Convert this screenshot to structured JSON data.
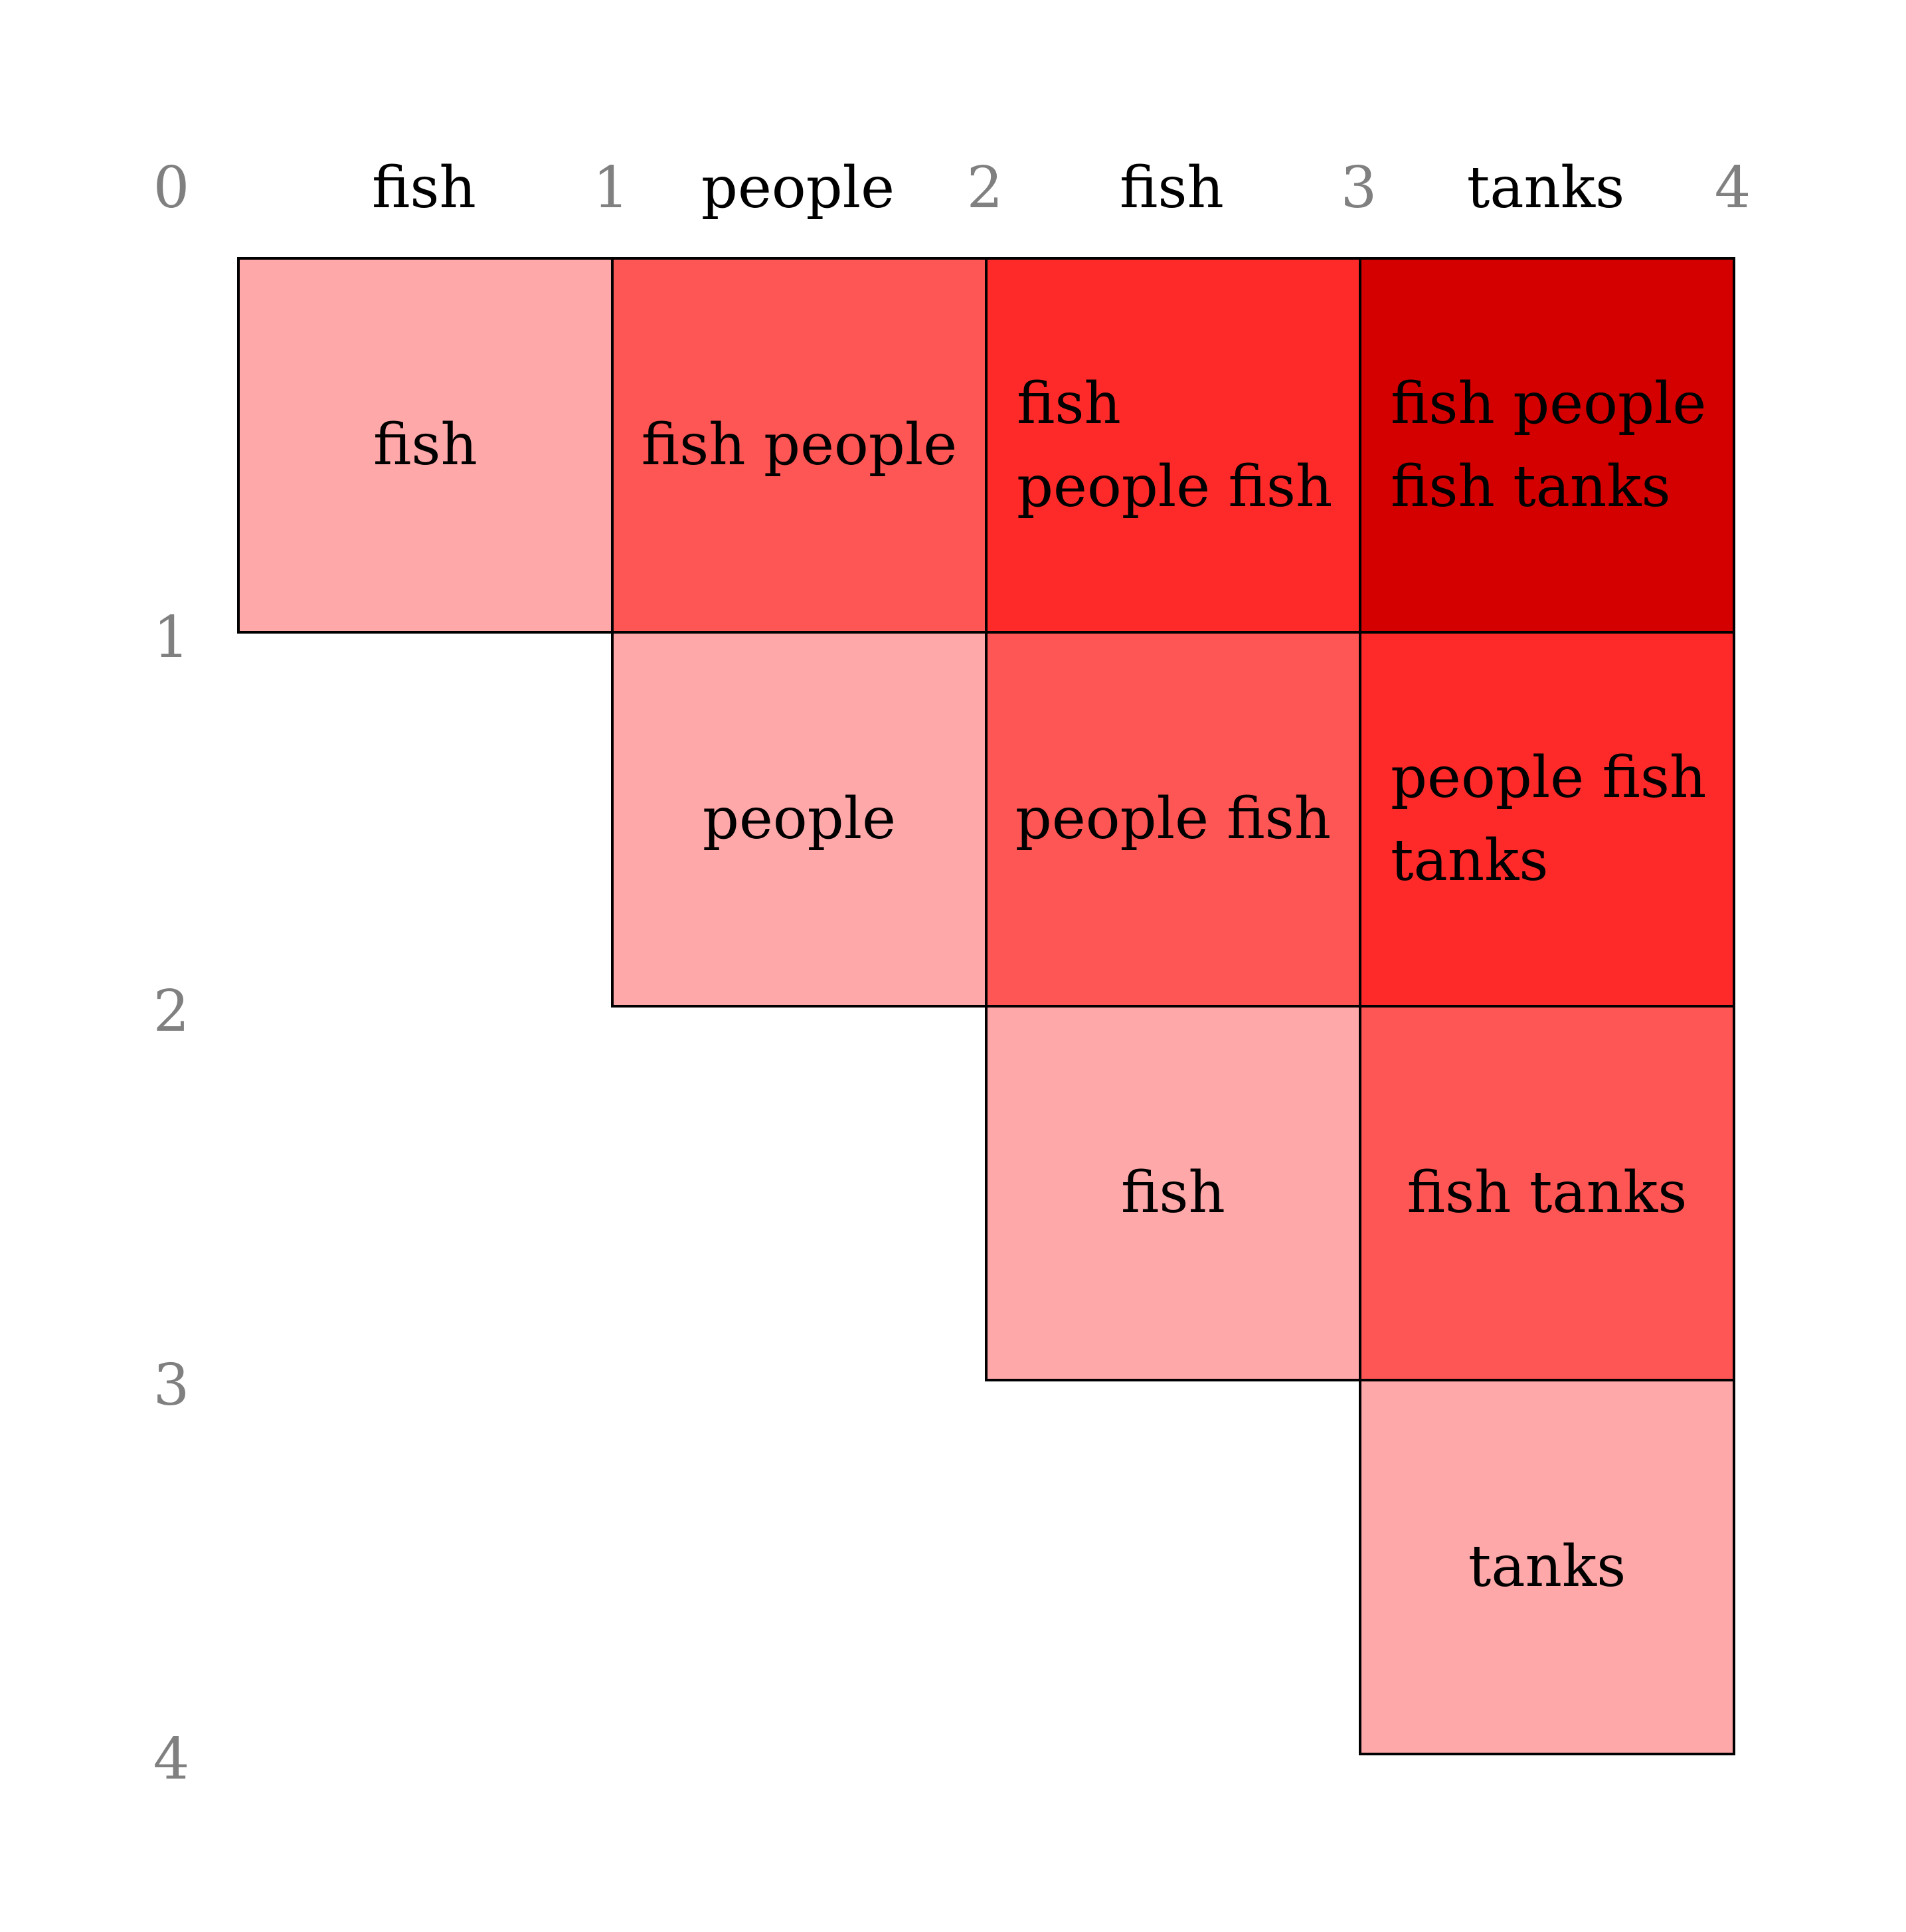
{
  "boundary_indices": [
    "0",
    "1",
    "2",
    "3",
    "4"
  ],
  "words": [
    "fish",
    "people",
    "fish",
    "tanks"
  ],
  "colors": {
    "span_1": "#fea8aa",
    "span_2": "#fe5555",
    "span_3": "#fe2a2a",
    "span_4": "#d40000",
    "border": "#000000",
    "index_text": "#808080"
  },
  "cells": [
    {
      "start": 0,
      "end": 1,
      "text": "fish"
    },
    {
      "start": 0,
      "end": 2,
      "text": "fish people"
    },
    {
      "start": 0,
      "end": 3,
      "text": "fish\npeople fish"
    },
    {
      "start": 0,
      "end": 4,
      "text": "fish people\nfish tanks"
    },
    {
      "start": 1,
      "end": 2,
      "text": "people"
    },
    {
      "start": 1,
      "end": 3,
      "text": "people fish"
    },
    {
      "start": 1,
      "end": 4,
      "text": "people fish\ntanks"
    },
    {
      "start": 2,
      "end": 3,
      "text": "fish"
    },
    {
      "start": 2,
      "end": 4,
      "text": "fish tanks"
    },
    {
      "start": 3,
      "end": 4,
      "text": "tanks"
    }
  ]
}
